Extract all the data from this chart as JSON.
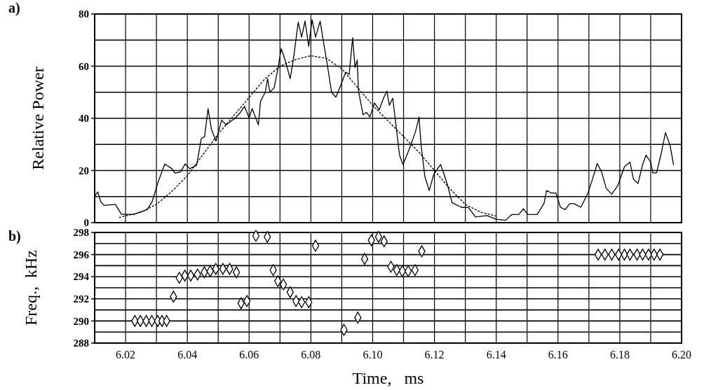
{
  "chart_data": [
    {
      "type": "line",
      "title": "a)",
      "ylabel": "Relative Power",
      "xlim": [
        6.01,
        6.2
      ],
      "ylim": [
        0,
        80
      ],
      "xticks": [
        {
          "value": 6.01,
          "label": null
        },
        {
          "value": 6.02,
          "label": null
        },
        {
          "value": 6.03,
          "label": null
        },
        {
          "value": 6.04,
          "label": null
        },
        {
          "value": 6.05,
          "label": null
        },
        {
          "value": 6.06,
          "label": null
        },
        {
          "value": 6.07,
          "label": null
        },
        {
          "value": 6.08,
          "label": null
        },
        {
          "value": 6.09,
          "label": null
        },
        {
          "value": 6.1,
          "label": null
        },
        {
          "value": 6.11,
          "label": null
        },
        {
          "value": 6.12,
          "label": null
        },
        {
          "value": 6.13,
          "label": null
        },
        {
          "value": 6.14,
          "label": null
        },
        {
          "value": 6.15,
          "label": null
        },
        {
          "value": 6.16,
          "label": null
        },
        {
          "value": 6.17,
          "label": null
        },
        {
          "value": 6.18,
          "label": null
        },
        {
          "value": 6.19,
          "label": null
        },
        {
          "value": 6.2,
          "label": null
        }
      ],
      "yticks": [
        0,
        {
          "value": 10,
          "label": null
        },
        20,
        {
          "value": 30,
          "label": null
        },
        40,
        {
          "value": 50,
          "label": null
        },
        60,
        {
          "value": 70,
          "label": null
        },
        80
      ],
      "tick_labels": "y",
      "grid": true,
      "marker": "none",
      "series": [
        {
          "color": "#000000",
          "line_style": "solid",
          "x": [
            6.01,
            6.011,
            6.012,
            6.013,
            6.0167,
            6.0187,
            6.0227,
            6.027,
            6.0286,
            6.0305,
            6.0327,
            6.035,
            6.036,
            6.0378,
            6.0393,
            6.0408,
            6.043,
            6.0445,
            6.0456,
            6.0467,
            6.0478,
            6.0493,
            6.0511,
            6.0526,
            6.0556,
            6.057,
            6.0585,
            6.06,
            6.061,
            6.063,
            6.0637,
            6.0652,
            6.066,
            6.0667,
            6.0681,
            6.0693,
            6.0704,
            6.0719,
            6.0733,
            6.0744,
            6.0759,
            6.077,
            6.0781,
            6.0793,
            6.0804,
            6.0815,
            6.083,
            6.0837,
            6.0852,
            6.0867,
            6.0881,
            6.0896,
            6.0913,
            6.0924,
            6.0935,
            6.0943,
            6.095,
            6.0954,
            6.0969,
            6.098,
            6.0991,
            6.1006,
            6.1021,
            6.1035,
            6.1046,
            6.1054,
            6.1065,
            6.1076,
            6.1087,
            6.1098,
            6.1117,
            6.1139,
            6.115,
            6.1157,
            6.1169,
            6.1183,
            6.1198,
            6.122,
            6.1231,
            6.1243,
            6.1257,
            6.1287,
            6.131,
            6.1333,
            6.137,
            6.14,
            6.143,
            6.145,
            6.1473,
            6.1488,
            6.1503,
            6.1533,
            6.1555,
            6.1563,
            6.1578,
            6.1593,
            6.1608,
            6.1623,
            6.1638,
            6.1652,
            6.1674,
            6.1697,
            6.1712,
            6.1727,
            6.1741,
            6.1756,
            6.1774,
            6.1793,
            6.1815,
            6.1833,
            6.1844,
            6.1859,
            6.1874,
            6.1885,
            6.19,
            6.1907,
            6.1919,
            6.1933,
            6.1948,
            6.1963,
            6.1974
          ],
          "values": [
            10.1,
            11.8,
            8,
            6.6,
            7,
            3.2,
            3.2,
            5,
            8,
            15.4,
            22.5,
            20.7,
            19,
            19.4,
            22.5,
            20.7,
            22,
            32.2,
            33,
            43.7,
            35.8,
            31.3,
            39.3,
            37.5,
            40.2,
            42,
            44.6,
            40.2,
            43.7,
            37.5,
            46.5,
            50,
            55.2,
            50,
            51.7,
            58.8,
            66.7,
            61.4,
            55.2,
            63.2,
            76.9,
            71.1,
            77.3,
            67.6,
            77.8,
            71.1,
            77.3,
            72,
            61.4,
            50,
            48.1,
            52.5,
            57.7,
            56.8,
            70.9,
            59.5,
            62.3,
            50.5,
            41.4,
            42.3,
            40.5,
            45.9,
            43.2,
            47.7,
            50.5,
            45,
            47.7,
            36.8,
            25.9,
            22.3,
            27.7,
            35,
            40.5,
            29.5,
            17.7,
            12.3,
            18.6,
            22.3,
            18.6,
            14.1,
            7.7,
            5.9,
            5.8,
            2.2,
            2.7,
            1.3,
            0.9,
            3.1,
            3.1,
            5.3,
            3.1,
            3.1,
            7.5,
            12.3,
            11.4,
            11.4,
            5.9,
            5,
            7.3,
            7.3,
            5.9,
            11.4,
            16.8,
            22.7,
            19.5,
            13.2,
            10.9,
            14.1,
            21.4,
            23.2,
            16.8,
            15,
            22.3,
            25.9,
            23.2,
            19.1,
            19.1,
            25.9,
            34.5,
            29.5,
            22.3
          ]
        },
        {
          "color": "#000000",
          "line_style": "dotted",
          "x": [
            6.018,
            6.025,
            6.03,
            6.035,
            6.04,
            6.045,
            6.05,
            6.055,
            6.06,
            6.065,
            6.07,
            6.075,
            6.08,
            6.085,
            6.09,
            6.095,
            6.1,
            6.105,
            6.11,
            6.115,
            6.12,
            6.125,
            6.13,
            6.135,
            6.14
          ],
          "values": [
            2,
            4,
            7,
            12,
            18,
            26,
            34,
            41,
            48,
            55,
            60,
            62.5,
            64,
            63,
            59,
            52,
            45,
            39,
            33,
            27,
            20,
            13,
            7,
            4,
            2.5
          ]
        }
      ]
    },
    {
      "type": "scatter",
      "title": "b)",
      "ylabel": "Freq.,  kHz",
      "xlabel": "Time,   ms",
      "xlim": [
        6.01,
        6.2
      ],
      "ylim": [
        288,
        298
      ],
      "xticks": [
        {
          "value": 6.01,
          "label": null
        },
        6.02,
        {
          "value": 6.03,
          "label": null
        },
        6.04,
        {
          "value": 6.05,
          "label": null
        },
        6.06,
        {
          "value": 6.07,
          "label": null
        },
        6.08,
        {
          "value": 6.09,
          "label": null
        },
        {
          "value": 6.1,
          "label": "6.10"
        },
        {
          "value": 6.11,
          "label": null
        },
        6.12,
        {
          "value": 6.13,
          "label": null
        },
        6.14,
        {
          "value": 6.15,
          "label": null
        },
        6.16,
        {
          "value": 6.17,
          "label": null
        },
        6.18,
        {
          "value": 6.19,
          "label": null
        },
        {
          "value": 6.2,
          "label": "6.20"
        }
      ],
      "yticks": [
        288,
        {
          "value": 289,
          "label": null
        },
        290,
        {
          "value": 291,
          "label": null
        },
        292,
        {
          "value": 293,
          "label": null
        },
        294,
        {
          "value": 295,
          "label": null
        },
        296,
        {
          "value": 297,
          "label": null
        },
        298
      ],
      "grid": true,
      "marker": "diamond",
      "series": [
        {
          "color": "#000000",
          "x": [
            6.023,
            6.0248,
            6.0267,
            6.0285,
            6.0304,
            6.0318,
            6.0333,
            6.0355,
            6.0374,
            6.0392,
            6.0411,
            6.0433,
            6.0455,
            6.0474,
            6.0492,
            6.0515,
            6.0537,
            6.0559,
            6.0574,
            6.0593,
            6.0622,
            6.0659,
            6.0678,
            6.0693,
            6.0711,
            6.0733,
            6.0752,
            6.077,
            6.0793,
            6.0815,
            6.0907,
            6.0952,
            6.0974,
            6.0996,
            6.1019,
            6.1037,
            6.1059,
            6.1078,
            6.1096,
            6.1115,
            6.1137,
            6.1159,
            6.173,
            6.1752,
            6.1774,
            6.1796,
            6.1815,
            6.1833,
            6.1856,
            6.1874,
            6.1893,
            6.1911,
            6.193
          ],
          "values": [
            290,
            290,
            290,
            290,
            290,
            290,
            290,
            292.2,
            293.9,
            294.1,
            294.1,
            294.2,
            294.4,
            294.5,
            294.7,
            294.7,
            294.7,
            294.4,
            291.6,
            291.8,
            297.7,
            297.6,
            294.6,
            293.6,
            293.3,
            292.6,
            291.8,
            291.7,
            291.7,
            296.8,
            289.2,
            290.3,
            295.6,
            297.3,
            297.6,
            297.2,
            294.9,
            294.6,
            294.5,
            294.5,
            294.6,
            296.3,
            296,
            296,
            296,
            296,
            296,
            296,
            296,
            296,
            296,
            296,
            296
          ]
        }
      ]
    }
  ]
}
